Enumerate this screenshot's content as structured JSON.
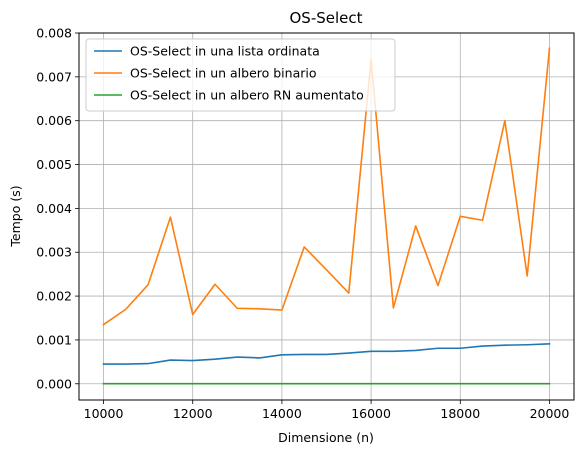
{
  "chart_data": {
    "type": "line",
    "title": "OS-Select",
    "xlabel": "Dimensione (n)",
    "ylabel": "Tempo (s)",
    "xlim": [
      9450,
      20550
    ],
    "ylim": [
      -0.00037,
      0.008
    ],
    "xticks": [
      10000,
      12000,
      14000,
      16000,
      18000,
      20000
    ],
    "xtick_labels": [
      "10000",
      "12000",
      "14000",
      "16000",
      "18000",
      "20000"
    ],
    "yticks": [
      0.0,
      0.001,
      0.002,
      0.003,
      0.004,
      0.005,
      0.006,
      0.007,
      0.008
    ],
    "ytick_labels": [
      "0.000",
      "0.001",
      "0.002",
      "0.003",
      "0.004",
      "0.005",
      "0.006",
      "0.007",
      "0.008"
    ],
    "grid": true,
    "legend_position": "top-left",
    "x": [
      10000,
      10500,
      11000,
      11500,
      12000,
      12500,
      13000,
      13500,
      14000,
      14500,
      15000,
      15500,
      16000,
      16500,
      17000,
      17500,
      18000,
      18500,
      19000,
      19500,
      20000
    ],
    "series": [
      {
        "name": "OS-Select in una lista ordinata",
        "color": "#1f77b4",
        "values": [
          0.00045,
          0.00045,
          0.00046,
          0.00054,
          0.00053,
          0.00056,
          0.00061,
          0.00059,
          0.00066,
          0.00067,
          0.00067,
          0.0007,
          0.00074,
          0.00074,
          0.00076,
          0.00081,
          0.00081,
          0.00086,
          0.00088,
          0.00089,
          0.00091
        ]
      },
      {
        "name": "OS-Select in un albero binario",
        "color": "#ff7f0e",
        "values": [
          0.00135,
          0.0017,
          0.00226,
          0.0038,
          0.00158,
          0.00227,
          0.00172,
          0.00171,
          0.00168,
          0.00312,
          0.0026,
          0.00207,
          0.0074,
          0.00173,
          0.0036,
          0.00224,
          0.00382,
          0.00373,
          0.006,
          0.00246,
          0.00765
        ]
      },
      {
        "name": "OS-Select in un albero RN aumentato",
        "color": "#2ca02c",
        "values": [
          3e-06,
          3e-06,
          3e-06,
          3e-06,
          3e-06,
          3e-06,
          3e-06,
          3e-06,
          3e-06,
          3e-06,
          3e-06,
          3e-06,
          3e-06,
          3e-06,
          3e-06,
          3e-06,
          3e-06,
          3e-06,
          3e-06,
          3e-06,
          3e-06
        ]
      }
    ]
  }
}
